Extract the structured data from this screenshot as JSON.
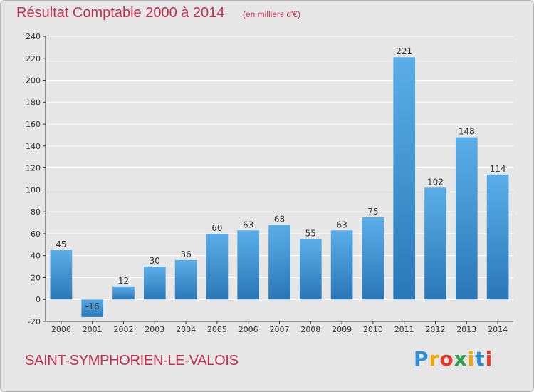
{
  "header": {
    "title": "Résultat Comptable 2000 à 2014",
    "subtitle": "(en milliers d'€)"
  },
  "footer": {
    "commune": "SAINT-SYMPHORIEN-LE-VALOIS",
    "logo_text": "Proxiti",
    "logo_colors": [
      "#2b8fd6",
      "#f0a500",
      "#e5392d",
      "#2aa14a",
      "#f0a500",
      "#2b8fd6",
      "#e5392d"
    ]
  },
  "colors": {
    "bar_light": "#5aaee8",
    "bar_dark": "#2a77b8",
    "grid": "#ffffff",
    "axis": "#333333",
    "background": "#e6e6e6",
    "title": "#c0304e"
  },
  "chart_data": {
    "type": "bar",
    "categories": [
      "2000",
      "2001",
      "2002",
      "2003",
      "2004",
      "2005",
      "2006",
      "2007",
      "2008",
      "2009",
      "2010",
      "2011",
      "2012",
      "2013",
      "2014"
    ],
    "values": [
      45,
      -16,
      12,
      30,
      36,
      60,
      63,
      68,
      55,
      63,
      75,
      221,
      102,
      148,
      114
    ],
    "ylim": [
      -20,
      240
    ],
    "yticks": [
      -20,
      0,
      20,
      40,
      60,
      80,
      100,
      120,
      140,
      160,
      180,
      200,
      220,
      240
    ],
    "grid": true,
    "xlabel": "",
    "ylabel": ""
  }
}
